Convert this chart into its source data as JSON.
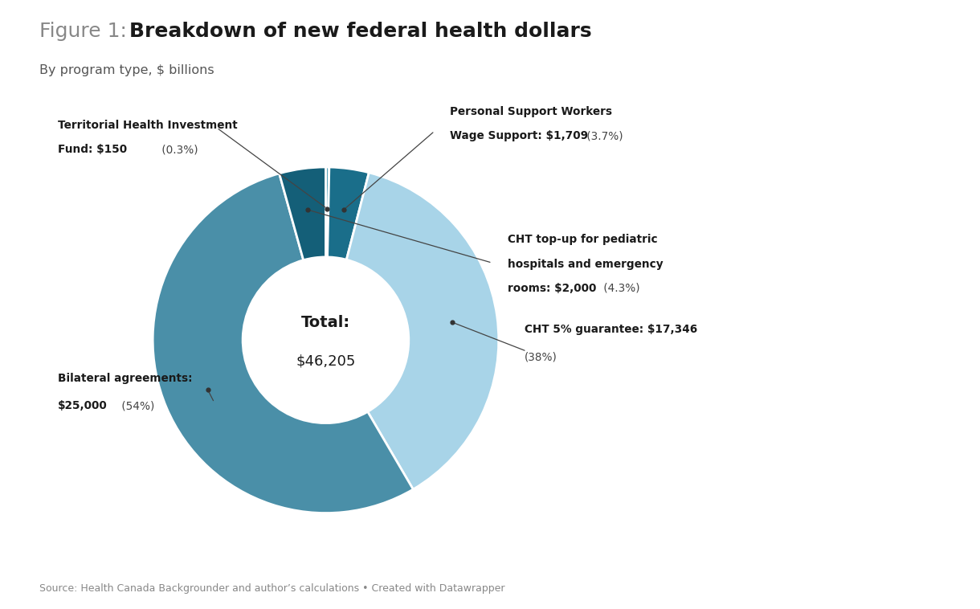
{
  "title_prefix": "Figure 1: ",
  "title_bold": "Breakdown of new federal health dollars",
  "subtitle": "By program type, $ billions",
  "source": "Source: Health Canada Backgrounder and author’s calculations • Created with Datawrapper",
  "total_label": "Total:",
  "total_value": "$46,205",
  "slices": [
    {
      "name": "CHT 5% guarantee",
      "value": 17346,
      "color": "#a8d4e8",
      "pct": "38%"
    },
    {
      "name": "Personal Support Workers",
      "value": 1709,
      "color": "#1a6e8a",
      "pct": "3.7%"
    },
    {
      "name": "Territorial Health Investment Fund",
      "value": 150,
      "color": "#5ba4bb",
      "pct": "0.3%"
    },
    {
      "name": "Bilateral agreements",
      "value": 25000,
      "color": "#4a8fa8",
      "pct": "54%"
    },
    {
      "name": "CHT top-up",
      "value": 2000,
      "color": "#145f78",
      "pct": "4.3%"
    }
  ],
  "background_color": "#ffffff"
}
